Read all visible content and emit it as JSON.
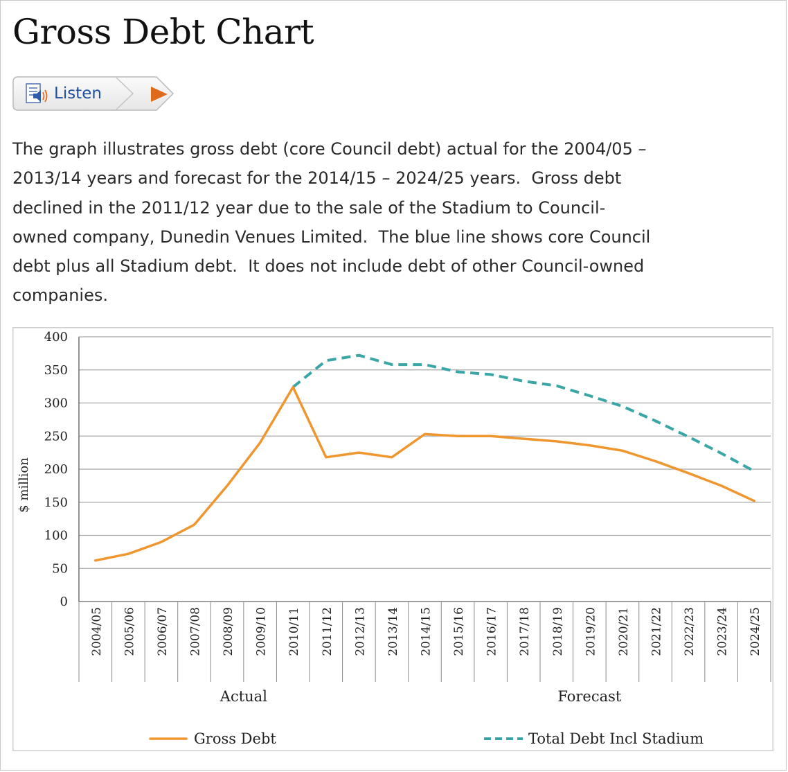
{
  "page": {
    "title": "Gross Debt Chart",
    "listen_label": "Listen",
    "description": "The graph illustrates gross debt (core Council debt) actual for the 2004/05 –\n2013/14 years and forecast for the 2014/15 – 2024/25 years.  Gross debt\ndeclined in the 2011/12 year due to the sale of the Stadium to Council-\nowned company, Dunedin Venues Limited.  The blue line shows core Council\ndebt plus all Stadium debt.  It does not include debt of other Council-owned\ncompanies."
  },
  "icons": {
    "listen": "document-speaker-icon",
    "play": "play-icon"
  },
  "colors": {
    "gross_debt": "#f0962e",
    "total_debt": "#3aa6a6",
    "grid": "#a8a8a8",
    "listen_text": "#1f4f9b",
    "play": "#e06a1c"
  },
  "chart_data": {
    "type": "line",
    "ylabel": "$ million",
    "ylim": [
      0,
      400
    ],
    "yticks": [
      0,
      50,
      100,
      150,
      200,
      250,
      300,
      350,
      400
    ],
    "grid": true,
    "legend_position": "bottom",
    "categories": [
      "2004/05",
      "2005/06",
      "2006/07",
      "2007/08",
      "2008/09",
      "2009/10",
      "2010/11",
      "2011/12",
      "2012/13",
      "2013/14",
      "2014/15",
      "2015/16",
      "2016/17",
      "2017/18",
      "2018/19",
      "2019/20",
      "2020/21",
      "2021/22",
      "2022/23",
      "2023/24",
      "2024/25"
    ],
    "groups": [
      {
        "label": "Actual",
        "from": "2004/05",
        "to": "2013/14"
      },
      {
        "label": "Forecast",
        "from": "2014/15",
        "to": "2024/25"
      }
    ],
    "series": [
      {
        "name": "Gross Debt",
        "style": "solid",
        "values": [
          62,
          72,
          90,
          116,
          175,
          240,
          324,
          218,
          225,
          218,
          253,
          250,
          250,
          246,
          242,
          236,
          228,
          212,
          194,
          175,
          152
        ]
      },
      {
        "name": "Total Debt Incl Stadium",
        "style": "dashed",
        "values": [
          null,
          null,
          null,
          null,
          null,
          null,
          324,
          364,
          372,
          358,
          358,
          347,
          343,
          333,
          326,
          311,
          295,
          273,
          249,
          224,
          197
        ]
      }
    ]
  }
}
